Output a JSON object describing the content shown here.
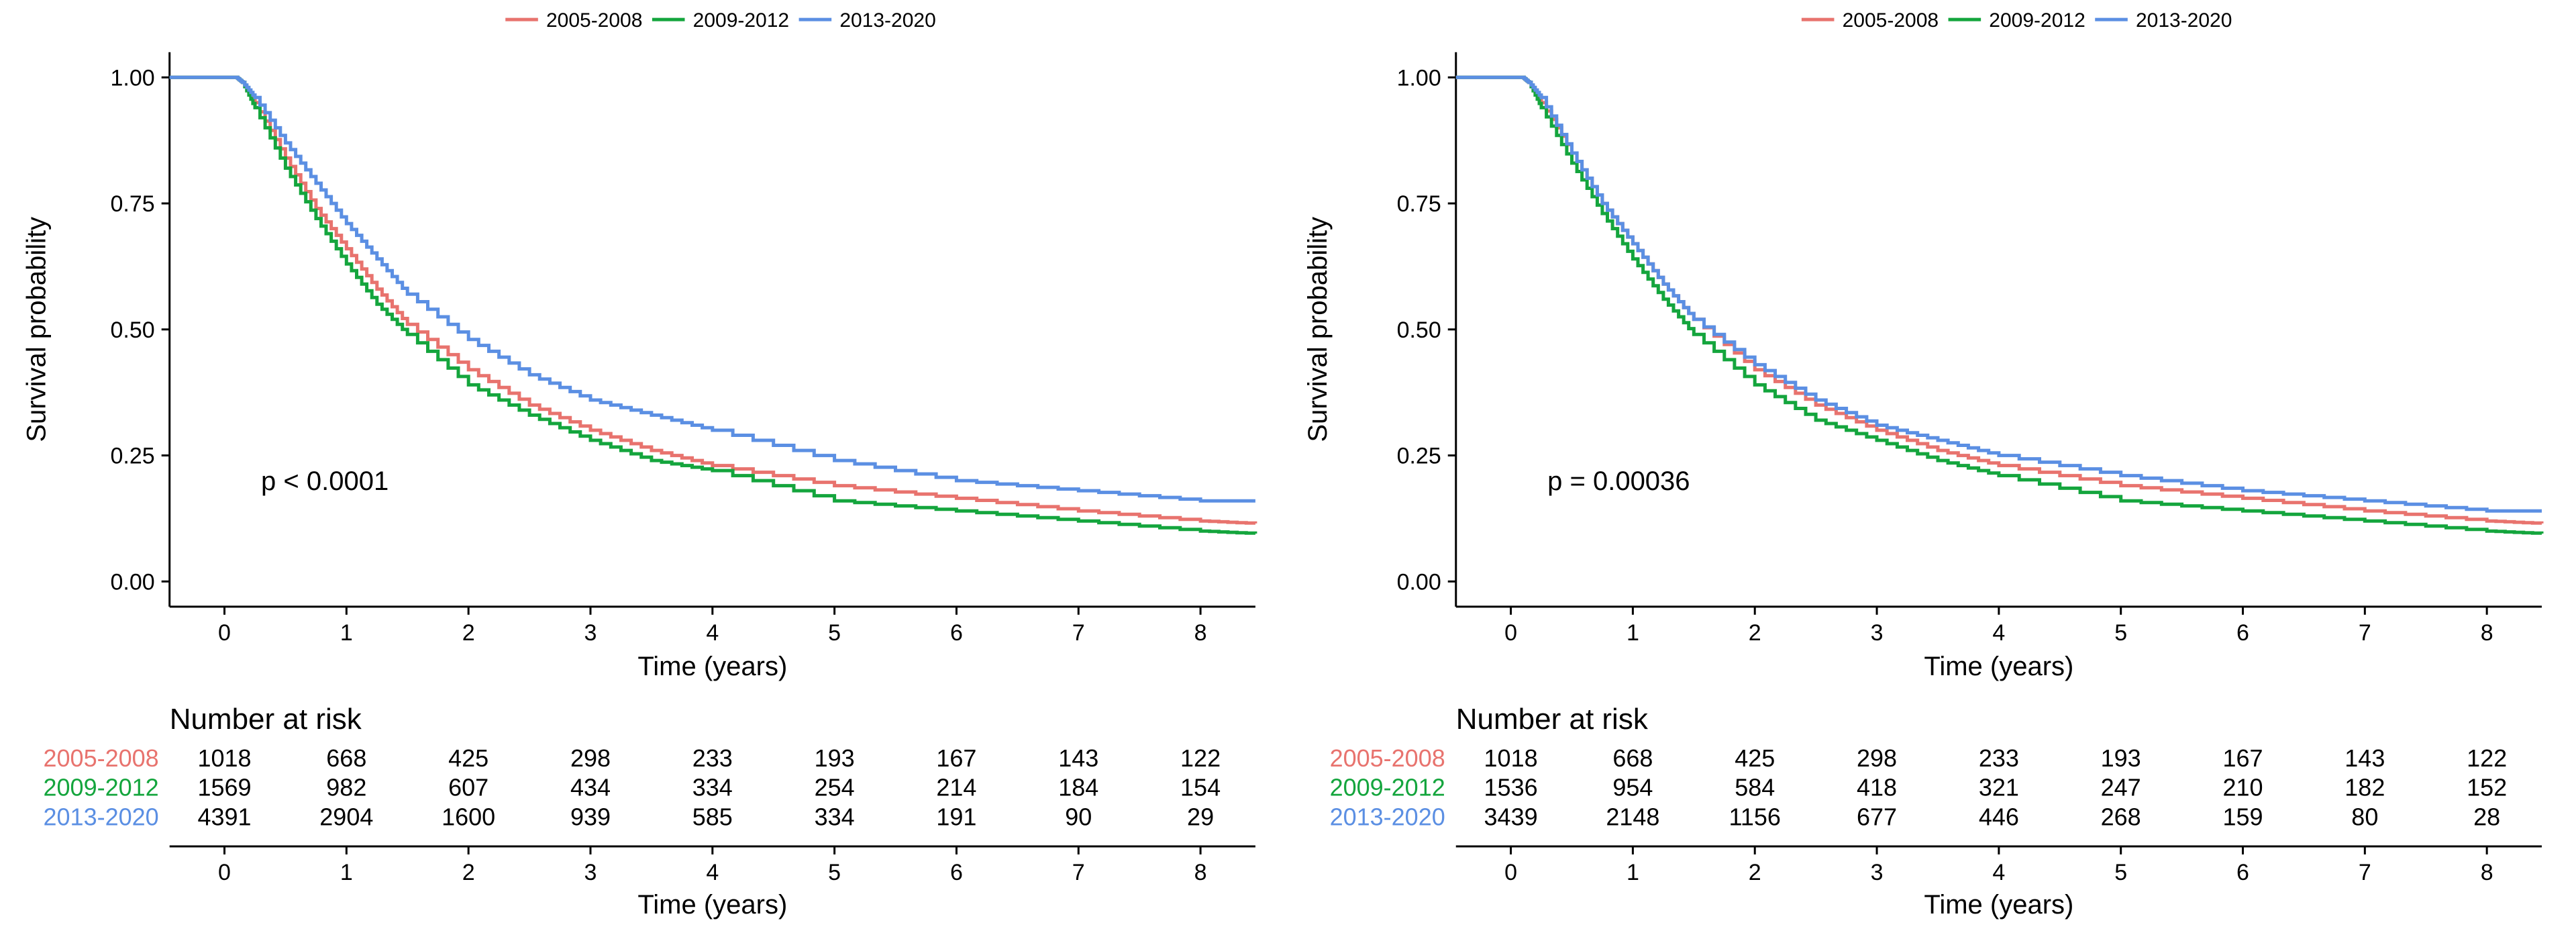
{
  "series_colors": {
    "2005-2008": "#E8736E",
    "2009-2012": "#14A53D",
    "2013-2020": "#5B8FE3"
  },
  "chart_data": [
    {
      "type": "line",
      "title": "",
      "legend": [
        "2005-2008",
        "2009-2012",
        "2013-2020"
      ],
      "legend_position": "top",
      "xlabel": "Time (years)",
      "ylabel": "Survival probability",
      "xlim": [
        -0.45,
        8.45
      ],
      "ylim": [
        -0.05,
        1.05
      ],
      "x_ticks": [
        0,
        1,
        2,
        3,
        4,
        5,
        6,
        7,
        8
      ],
      "x_tick_labels": [
        "0",
        "1",
        "2",
        "3",
        "4",
        "5",
        "6",
        "7",
        "8"
      ],
      "y_ticks": [
        0,
        0.25,
        0.5,
        0.75,
        1.0
      ],
      "y_tick_labels": [
        "0.00",
        "0.25",
        "0.50",
        "0.75",
        "1.00"
      ],
      "annotation": "p < 0.0001",
      "annotation_at": [
        0.3,
        0.2
      ],
      "series": [
        {
          "name": "2005-2008",
          "x": [
            -0.45,
            0.1,
            0.15,
            0.25,
            0.5,
            0.75,
            1,
            1.25,
            1.5,
            2,
            2.5,
            3,
            3.5,
            4,
            5,
            6,
            7,
            8,
            8.45
          ],
          "y": [
            1.0,
            1.0,
            0.99,
            0.95,
            0.84,
            0.74,
            0.66,
            0.58,
            0.51,
            0.42,
            0.35,
            0.3,
            0.26,
            0.23,
            0.19,
            0.165,
            0.14,
            0.12,
            0.115
          ]
        },
        {
          "name": "2009-2012",
          "x": [
            -0.45,
            0.1,
            0.15,
            0.25,
            0.5,
            0.75,
            1,
            1.25,
            1.5,
            2,
            2.5,
            3,
            3.5,
            4,
            5,
            6,
            7,
            8,
            8.45
          ],
          "y": [
            1.0,
            1.0,
            0.99,
            0.94,
            0.82,
            0.72,
            0.63,
            0.55,
            0.49,
            0.39,
            0.33,
            0.28,
            0.24,
            0.22,
            0.16,
            0.14,
            0.12,
            0.1,
            0.095
          ]
        },
        {
          "name": "2013-2020",
          "x": [
            -0.45,
            0.1,
            0.15,
            0.25,
            0.5,
            0.75,
            1,
            1.25,
            1.5,
            2,
            2.5,
            3,
            3.5,
            4,
            5,
            6,
            7,
            8,
            8.45
          ],
          "y": [
            1.0,
            1.0,
            0.99,
            0.96,
            0.87,
            0.79,
            0.71,
            0.64,
            0.57,
            0.48,
            0.41,
            0.36,
            0.33,
            0.3,
            0.24,
            0.2,
            0.18,
            0.16,
            0.16
          ]
        }
      ],
      "risk_table": {
        "title": "Number at risk",
        "xlabel": "Time (years)",
        "times": [
          "0",
          "1",
          "2",
          "3",
          "4",
          "5",
          "6",
          "7",
          "8"
        ],
        "rows": [
          {
            "group": "2005-2008",
            "values": [
              1018,
              668,
              425,
              298,
              233,
              193,
              167,
              143,
              122
            ]
          },
          {
            "group": "2009-2012",
            "values": [
              1569,
              982,
              607,
              434,
              334,
              254,
              214,
              184,
              154
            ]
          },
          {
            "group": "2013-2020",
            "values": [
              4391,
              2904,
              1600,
              939,
              585,
              334,
              191,
              90,
              29
            ]
          }
        ]
      }
    },
    {
      "type": "line",
      "title": "",
      "legend": [
        "2005-2008",
        "2009-2012",
        "2013-2020"
      ],
      "legend_position": "top",
      "xlabel": "Time (years)",
      "ylabel": "Survival probability",
      "xlim": [
        -0.45,
        8.45
      ],
      "ylim": [
        -0.05,
        1.05
      ],
      "x_ticks": [
        0,
        1,
        2,
        3,
        4,
        5,
        6,
        7,
        8
      ],
      "x_tick_labels": [
        "0",
        "1",
        "2",
        "3",
        "4",
        "5",
        "6",
        "7",
        "8"
      ],
      "y_ticks": [
        0,
        0.25,
        0.5,
        0.75,
        1.0
      ],
      "y_tick_labels": [
        "0.00",
        "0.25",
        "0.50",
        "0.75",
        "1.00"
      ],
      "annotation": "p = 0.00036",
      "annotation_at": [
        0.3,
        0.2
      ],
      "series": [
        {
          "name": "2005-2008",
          "x": [
            -0.45,
            0.1,
            0.15,
            0.25,
            0.5,
            0.75,
            1,
            1.25,
            1.5,
            2,
            2.5,
            3,
            3.5,
            4,
            5,
            6,
            7,
            8,
            8.45
          ],
          "y": [
            1.0,
            1.0,
            0.99,
            0.95,
            0.85,
            0.75,
            0.67,
            0.59,
            0.52,
            0.42,
            0.35,
            0.3,
            0.26,
            0.23,
            0.19,
            0.165,
            0.14,
            0.12,
            0.115
          ]
        },
        {
          "name": "2009-2012",
          "x": [
            -0.45,
            0.1,
            0.15,
            0.25,
            0.5,
            0.75,
            1,
            1.25,
            1.5,
            2,
            2.5,
            3,
            3.5,
            4,
            5,
            6,
            7,
            8,
            8.45
          ],
          "y": [
            1.0,
            1.0,
            0.99,
            0.94,
            0.83,
            0.73,
            0.64,
            0.56,
            0.49,
            0.39,
            0.32,
            0.28,
            0.24,
            0.21,
            0.16,
            0.14,
            0.12,
            0.1,
            0.095
          ]
        },
        {
          "name": "2013-2020",
          "x": [
            -0.45,
            0.1,
            0.15,
            0.25,
            0.5,
            0.75,
            1,
            1.25,
            1.5,
            2,
            2.5,
            3,
            3.5,
            4,
            5,
            6,
            7,
            8,
            8.45
          ],
          "y": [
            1.0,
            1.0,
            0.99,
            0.96,
            0.85,
            0.75,
            0.67,
            0.59,
            0.52,
            0.43,
            0.36,
            0.31,
            0.28,
            0.25,
            0.21,
            0.18,
            0.16,
            0.14,
            0.14
          ]
        }
      ],
      "risk_table": {
        "title": "Number at risk",
        "xlabel": "Time (years)",
        "times": [
          "0",
          "1",
          "2",
          "3",
          "4",
          "5",
          "6",
          "7",
          "8"
        ],
        "rows": [
          {
            "group": "2005-2008",
            "values": [
              1018,
              668,
              425,
              298,
              233,
              193,
              167,
              143,
              122
            ]
          },
          {
            "group": "2009-2012",
            "values": [
              1536,
              954,
              584,
              418,
              321,
              247,
              210,
              182,
              152
            ]
          },
          {
            "group": "2013-2020",
            "values": [
              3439,
              2148,
              1156,
              677,
              446,
              268,
              159,
              80,
              28
            ]
          }
        ]
      }
    }
  ]
}
